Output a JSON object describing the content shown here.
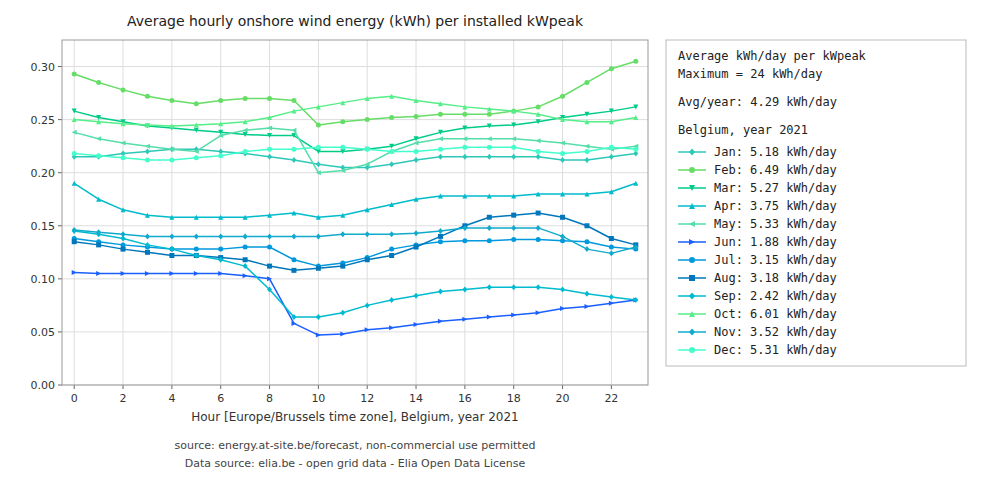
{
  "chart_data": {
    "type": "line",
    "title": "Average hourly onshore wind energy (kWh) per installed kWpeak",
    "x_label": "Hour [Europe/Brussels time zone], Belgium, year 2021",
    "annotations": [
      "source: energy.at-site.be/forecast, non-commercial use permitted",
      "Data source: elia.be - open grid data - Elia Open Data License"
    ],
    "legend_title": [
      "Average kWh/day per kWpeak",
      "Maximum = 24 kWh/day",
      "Avg/year: 4.29 kWh/day",
      "Belgium, year 2021"
    ],
    "legend": "right",
    "grid": true,
    "x": [
      0,
      1,
      2,
      3,
      4,
      5,
      6,
      7,
      8,
      9,
      10,
      11,
      12,
      13,
      14,
      15,
      16,
      17,
      18,
      19,
      20,
      21,
      22,
      23
    ],
    "xlim": [
      -0.5,
      23.5
    ],
    "xticks": [
      0,
      2,
      4,
      6,
      8,
      10,
      12,
      14,
      16,
      18,
      20,
      22
    ],
    "ylim": [
      0.0,
      0.325
    ],
    "yticks": [
      {
        "value": 0.0,
        "label": "0.00"
      },
      0.05,
      {
        "value": 0.1,
        "label": "0.10"
      },
      0.15,
      {
        "value": 0.2,
        "label": "0.20"
      },
      0.25,
      {
        "value": 0.3,
        "label": "0.30"
      }
    ],
    "series": [
      {
        "name": "Jan:  5.18  kWh/day",
        "color": "#2ec8b8",
        "marker": "diamond",
        "values": [
          0.215,
          0.215,
          0.218,
          0.22,
          0.222,
          0.222,
          0.22,
          0.218,
          0.215,
          0.212,
          0.208,
          0.205,
          0.205,
          0.208,
          0.212,
          0.215,
          0.215,
          0.215,
          0.215,
          0.215,
          0.212,
          0.212,
          0.215,
          0.218
        ]
      },
      {
        "name": "Feb:  6.49  kWh/day",
        "color": "#66dd66",
        "marker": "circle",
        "values": [
          0.293,
          0.285,
          0.278,
          0.272,
          0.268,
          0.265,
          0.268,
          0.27,
          0.27,
          0.268,
          0.245,
          0.248,
          0.25,
          0.252,
          0.253,
          0.255,
          0.255,
          0.255,
          0.258,
          0.262,
          0.272,
          0.285,
          0.298,
          0.305
        ]
      },
      {
        "name": "Mar:  5.27  kWh/day",
        "color": "#00cc88",
        "marker": "triangle-down",
        "values": [
          0.258,
          0.252,
          0.248,
          0.244,
          0.242,
          0.24,
          0.238,
          0.236,
          0.235,
          0.235,
          0.22,
          0.22,
          0.222,
          0.225,
          0.232,
          0.238,
          0.242,
          0.244,
          0.245,
          0.248,
          0.252,
          0.255,
          0.258,
          0.262
        ]
      },
      {
        "name": "Apr:  3.75  kWh/day",
        "color": "#00bbcc",
        "marker": "triangle-up",
        "values": [
          0.19,
          0.175,
          0.165,
          0.16,
          0.158,
          0.158,
          0.158,
          0.158,
          0.16,
          0.162,
          0.158,
          0.16,
          0.165,
          0.17,
          0.175,
          0.178,
          0.178,
          0.178,
          0.178,
          0.18,
          0.18,
          0.18,
          0.182,
          0.19
        ]
      },
      {
        "name": "May:  5.33  kWh/day",
        "color": "#55ddaa",
        "marker": "triangle-left",
        "values": [
          0.238,
          0.232,
          0.228,
          0.225,
          0.222,
          0.22,
          0.235,
          0.24,
          0.242,
          0.24,
          0.2,
          0.202,
          0.208,
          0.22,
          0.228,
          0.232,
          0.232,
          0.232,
          0.232,
          0.23,
          0.228,
          0.225,
          0.222,
          0.225
        ]
      },
      {
        "name": "Jun:  1.88  kWh/day",
        "color": "#1a5fff",
        "marker": "triangle-right",
        "values": [
          0.106,
          0.105,
          0.105,
          0.105,
          0.105,
          0.105,
          0.105,
          0.103,
          0.1,
          0.058,
          0.047,
          0.048,
          0.052,
          0.054,
          0.057,
          0.06,
          0.062,
          0.064,
          0.066,
          0.068,
          0.072,
          0.074,
          0.077,
          0.08
        ]
      },
      {
        "name": "Jul:  3.15  kWh/day",
        "color": "#0099dd",
        "marker": "circle",
        "values": [
          0.138,
          0.135,
          0.132,
          0.13,
          0.128,
          0.128,
          0.128,
          0.13,
          0.13,
          0.118,
          0.112,
          0.115,
          0.12,
          0.128,
          0.132,
          0.135,
          0.136,
          0.136,
          0.137,
          0.137,
          0.136,
          0.135,
          0.13,
          0.128
        ]
      },
      {
        "name": "Aug:  3.18  kWh/day",
        "color": "#0077bb",
        "marker": "square",
        "values": [
          0.135,
          0.132,
          0.128,
          0.125,
          0.122,
          0.122,
          0.12,
          0.118,
          0.112,
          0.108,
          0.11,
          0.112,
          0.118,
          0.122,
          0.13,
          0.14,
          0.15,
          0.158,
          0.16,
          0.162,
          0.158,
          0.15,
          0.138,
          0.132
        ]
      },
      {
        "name": "Sep:  2.42  kWh/day",
        "color": "#00bbd0",
        "marker": "diamond",
        "values": [
          0.145,
          0.142,
          0.138,
          0.132,
          0.128,
          0.122,
          0.118,
          0.112,
          0.09,
          0.064,
          0.064,
          0.068,
          0.075,
          0.08,
          0.084,
          0.088,
          0.09,
          0.092,
          0.092,
          0.092,
          0.09,
          0.086,
          0.083,
          0.08
        ]
      },
      {
        "name": "Oct:  6.01  kWh/day",
        "color": "#55ee88",
        "marker": "triangle-up",
        "values": [
          0.25,
          0.248,
          0.246,
          0.245,
          0.244,
          0.245,
          0.246,
          0.248,
          0.252,
          0.258,
          0.262,
          0.266,
          0.27,
          0.272,
          0.268,
          0.265,
          0.262,
          0.26,
          0.258,
          0.255,
          0.25,
          0.248,
          0.248,
          0.252
        ]
      },
      {
        "name": "Nov:  3.52  kWh/day",
        "color": "#11aacc",
        "marker": "diamond",
        "values": [
          0.146,
          0.144,
          0.142,
          0.14,
          0.14,
          0.14,
          0.14,
          0.14,
          0.14,
          0.14,
          0.14,
          0.142,
          0.142,
          0.142,
          0.143,
          0.145,
          0.148,
          0.148,
          0.148,
          0.148,
          0.14,
          0.128,
          0.124,
          0.13
        ]
      },
      {
        "name": "Dec:  5.31  kWh/day",
        "color": "#44ffcc",
        "marker": "circle",
        "values": [
          0.218,
          0.216,
          0.214,
          0.212,
          0.212,
          0.214,
          0.216,
          0.22,
          0.222,
          0.222,
          0.224,
          0.224,
          0.222,
          0.22,
          0.22,
          0.222,
          0.224,
          0.224,
          0.224,
          0.22,
          0.218,
          0.22,
          0.224,
          0.222
        ]
      }
    ]
  }
}
